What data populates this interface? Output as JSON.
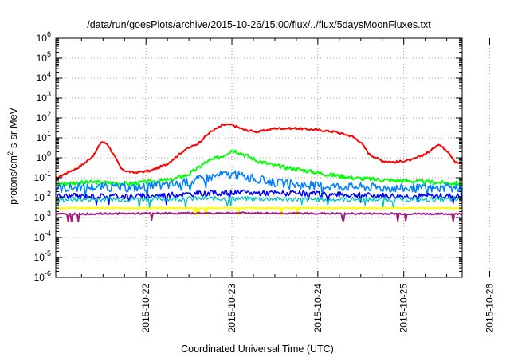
{
  "chart_data": {
    "type": "line",
    "title": "/data/run/goesPlots/archive/2015-10-26/15:00/flux/../flux/5daysMoonFluxes.txt",
    "xlabel": "Coordinated Universal Time (UTC)",
    "ylabel_parts": [
      "protons/cm",
      "2",
      "-s-sr-MeV"
    ],
    "yscale": "log",
    "ylim_exp": [
      -6,
      6
    ],
    "x_tick_labels": [
      "2015-10-22",
      "2015-10-23",
      "2015-10-24",
      "2015-10-25",
      "2015-10-26"
    ],
    "xlim_days": [
      -1.05,
      3.68
    ],
    "grid": true,
    "legend": "none",
    "series": [
      {
        "color": "#ff0000",
        "width": 2,
        "noise": 0.05,
        "points": [
          [
            -1.05,
            0.09
          ],
          [
            -0.9,
            0.2
          ],
          [
            -0.8,
            0.3
          ],
          [
            -0.7,
            0.6
          ],
          [
            -0.6,
            1.5
          ],
          [
            -0.52,
            6.5
          ],
          [
            -0.45,
            5
          ],
          [
            -0.38,
            1.5
          ],
          [
            -0.28,
            0.25
          ],
          [
            -0.15,
            0.18
          ],
          [
            0.05,
            0.22
          ],
          [
            0.25,
            0.5
          ],
          [
            0.45,
            2.5
          ],
          [
            0.6,
            5
          ],
          [
            0.75,
            20
          ],
          [
            0.9,
            45
          ],
          [
            1.0,
            45
          ],
          [
            1.15,
            25
          ],
          [
            1.3,
            20
          ],
          [
            1.5,
            30
          ],
          [
            1.75,
            30
          ],
          [
            2.0,
            25
          ],
          [
            2.2,
            20
          ],
          [
            2.4,
            12
          ],
          [
            2.5,
            6
          ],
          [
            2.6,
            1.5
          ],
          [
            2.75,
            0.7
          ],
          [
            2.9,
            0.6
          ],
          [
            3.1,
            0.8
          ],
          [
            3.3,
            2
          ],
          [
            3.4,
            5
          ],
          [
            3.52,
            2
          ],
          [
            3.6,
            0.6
          ],
          [
            3.68,
            0.5
          ]
        ]
      },
      {
        "color": "#00ff00",
        "width": 2,
        "noise": 0.1,
        "points": [
          [
            -1.05,
            0.05
          ],
          [
            -0.6,
            0.06
          ],
          [
            -0.2,
            0.05
          ],
          [
            0.3,
            0.08
          ],
          [
            0.5,
            0.15
          ],
          [
            0.7,
            0.6
          ],
          [
            0.9,
            1.3
          ],
          [
            1.0,
            2.5
          ],
          [
            1.1,
            1.8
          ],
          [
            1.3,
            0.7
          ],
          [
            1.5,
            0.4
          ],
          [
            1.8,
            0.25
          ],
          [
            2.1,
            0.15
          ],
          [
            2.4,
            0.1
          ],
          [
            2.7,
            0.08
          ],
          [
            3.0,
            0.07
          ],
          [
            3.68,
            0.05
          ]
        ]
      },
      {
        "color": "#0080ff",
        "width": 1.6,
        "noise": 0.22,
        "points": [
          [
            -1.05,
            0.03
          ],
          [
            -0.6,
            0.035
          ],
          [
            -0.2,
            0.03
          ],
          [
            0.4,
            0.05
          ],
          [
            0.7,
            0.1
          ],
          [
            0.9,
            0.15
          ],
          [
            1.1,
            0.13
          ],
          [
            1.3,
            0.08
          ],
          [
            1.6,
            0.05
          ],
          [
            2.0,
            0.04
          ],
          [
            2.5,
            0.035
          ],
          [
            3.0,
            0.03
          ],
          [
            3.68,
            0.03
          ]
        ]
      },
      {
        "color": "#0000ff",
        "width": 1.6,
        "noise": 0.14,
        "points": [
          [
            -1.05,
            0.012
          ],
          [
            0.0,
            0.012
          ],
          [
            0.5,
            0.015
          ],
          [
            1.0,
            0.018
          ],
          [
            1.5,
            0.017
          ],
          [
            2.0,
            0.015
          ],
          [
            3.0,
            0.012
          ],
          [
            3.68,
            0.012
          ]
        ]
      },
      {
        "color": "#00c0c0",
        "width": 1.3,
        "noise": 0.12,
        "points": [
          [
            -1.05,
            0.008
          ],
          [
            1.0,
            0.009
          ],
          [
            2.0,
            0.008
          ],
          [
            3.68,
            0.008
          ]
        ]
      },
      {
        "color": "#ffff00",
        "width": 2,
        "noise": 0.03,
        "points": [
          [
            -1.05,
            0.003
          ],
          [
            1.0,
            0.003
          ],
          [
            2.0,
            0.003
          ],
          [
            3.68,
            0.003
          ]
        ]
      },
      {
        "color": "#a02080",
        "width": 2,
        "noise": 0.04,
        "points": [
          [
            -1.05,
            0.0015
          ],
          [
            1.0,
            0.0017
          ],
          [
            2.0,
            0.0016
          ],
          [
            3.68,
            0.0015
          ]
        ]
      }
    ]
  }
}
